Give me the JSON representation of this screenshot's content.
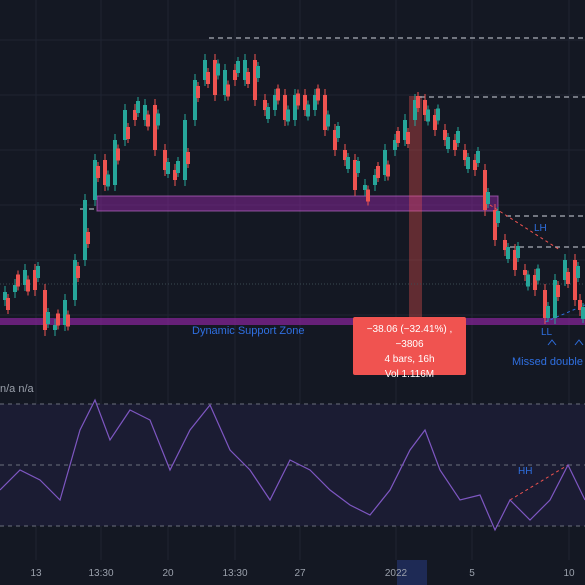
{
  "chart_data": {
    "type": "candlestick",
    "x_ticks": [
      "13",
      "13:30",
      "20",
      "13:30",
      "27",
      "2022",
      "5",
      "10"
    ],
    "annotations": {
      "dynamic_support_zone": "Dynamic Support Zone",
      "lower_high": "LH",
      "lower_low": "LL",
      "missed_double": "Missed double",
      "higher_high": "HH",
      "indicator_values": "n/a n/a"
    },
    "measure_tooltip": {
      "change": "−38.06 (−32.41%) , −3806",
      "duration": "4 bars, 16h",
      "volume": "Vol 1.116M"
    }
  },
  "colors": {
    "background": "#141823",
    "bullish": "#26a69a",
    "bearish": "#ef5350",
    "zone": "#9c27b0",
    "oscillator": "#7e57c2",
    "annotation": "#2f6fe0",
    "tooltip": "#f05350"
  }
}
